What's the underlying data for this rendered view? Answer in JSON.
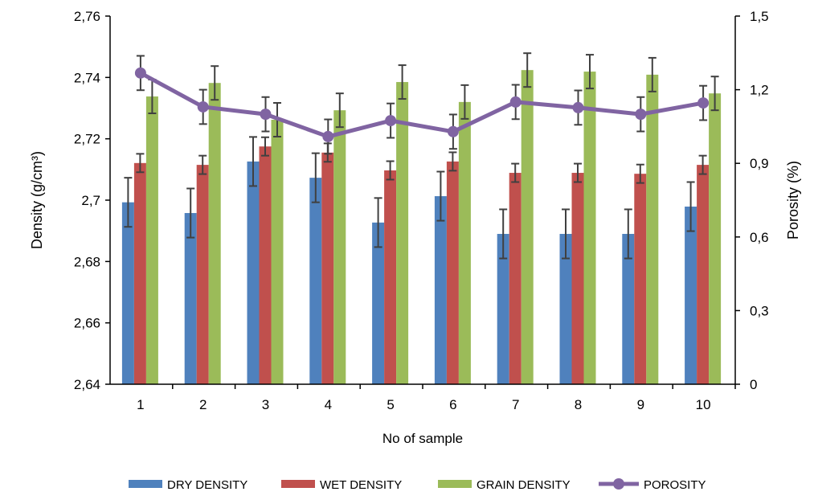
{
  "chart_data": {
    "type": "bar",
    "xlabel": "No of sample",
    "ylabel": "Density (g/cm³)",
    "ylabel_right": "Porosity (%)",
    "categories": [
      "1",
      "2",
      "3",
      "4",
      "5",
      "6",
      "7",
      "8",
      "9",
      "10"
    ],
    "ylim": [
      2.64,
      2.76
    ],
    "yticks": [
      "2,64",
      "2,66",
      "2,68",
      "2,7",
      "2,72",
      "2,74",
      "2,76"
    ],
    "ylim_right": [
      0,
      1.5
    ],
    "yticks_right": [
      "0",
      "0,3",
      "0,6",
      "0,9",
      "1,2",
      "1,5"
    ],
    "grid": false,
    "legend_position": "bottom",
    "series": [
      {
        "name": "DRY DENSITY",
        "kind": "bar",
        "color": "#4f81bd",
        "axis": "left",
        "values": [
          2.6993,
          2.6958,
          2.7126,
          2.7073,
          2.6927,
          2.7013,
          2.689,
          2.689,
          2.689,
          2.6979
        ],
        "error": [
          0.008,
          0.008,
          0.008,
          0.008,
          0.008,
          0.008,
          0.008,
          0.008,
          0.008,
          0.008
        ]
      },
      {
        "name": "WET DENSITY",
        "kind": "bar",
        "color": "#c0504d",
        "axis": "left",
        "values": [
          2.7121,
          2.7115,
          2.7175,
          2.7155,
          2.7097,
          2.7126,
          2.7089,
          2.7089,
          2.7086,
          2.7115
        ],
        "error": [
          0.003,
          0.003,
          0.003,
          0.003,
          0.003,
          0.003,
          0.003,
          0.003,
          0.003,
          0.003
        ]
      },
      {
        "name": "GRAIN DENSITY",
        "kind": "bar",
        "color": "#9bbb59",
        "axis": "left",
        "values": [
          2.7338,
          2.7382,
          2.7262,
          2.7293,
          2.7385,
          2.732,
          2.7424,
          2.7419,
          2.7409,
          2.7348
        ],
        "error": [
          0.0055,
          0.0055,
          0.0055,
          0.0055,
          0.0055,
          0.0055,
          0.0055,
          0.0055,
          0.0055,
          0.0055
        ]
      },
      {
        "name": "POROSITY",
        "kind": "line",
        "color": "#8064a2",
        "axis": "right",
        "values": [
          1.268,
          1.13,
          1.1,
          1.009,
          1.074,
          1.029,
          1.15,
          1.127,
          1.1,
          1.146
        ],
        "error": [
          0.07,
          0.07,
          0.07,
          0.07,
          0.07,
          0.07,
          0.07,
          0.07,
          0.07,
          0.07
        ]
      }
    ]
  }
}
